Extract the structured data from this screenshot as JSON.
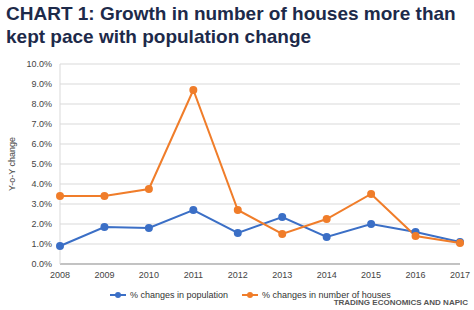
{
  "chart_data": {
    "type": "line",
    "title": "CHART 1: Growth in number of houses more than kept pace with population change",
    "y_label": "Y-o-Y change",
    "source": "TRADING ECONOMICS AND NAPIC",
    "categories": [
      "2008",
      "2009",
      "2010",
      "2011",
      "2012",
      "2013",
      "2014",
      "2015",
      "2016",
      "2017"
    ],
    "series": [
      {
        "name": "% changes in population",
        "color": "#3b6fc6",
        "marker": "circle",
        "values": [
          0.9,
          1.85,
          1.8,
          2.7,
          1.55,
          2.35,
          1.35,
          2.0,
          1.6,
          1.1
        ]
      },
      {
        "name": "% changes in number of houses",
        "color": "#f07d2a",
        "marker": "circle",
        "values": [
          3.4,
          3.4,
          3.75,
          8.7,
          2.7,
          1.5,
          2.25,
          3.5,
          1.4,
          1.05
        ]
      }
    ],
    "ylim": [
      0,
      10
    ],
    "yticks": [
      {
        "value": 0,
        "label": "0.0%"
      },
      {
        "value": 1,
        "label": "1.0%"
      },
      {
        "value": 2,
        "label": "2.0%"
      },
      {
        "value": 3,
        "label": "3.0%"
      },
      {
        "value": 4,
        "label": "4.0%"
      },
      {
        "value": 5,
        "label": "5.0%"
      },
      {
        "value": 6,
        "label": "6.0%"
      },
      {
        "value": 7,
        "label": "7.0%"
      },
      {
        "value": 8,
        "label": "8.0%"
      },
      {
        "value": 9,
        "label": "9.0%"
      },
      {
        "value": 10,
        "label": "10.0%"
      }
    ],
    "grid": true
  }
}
